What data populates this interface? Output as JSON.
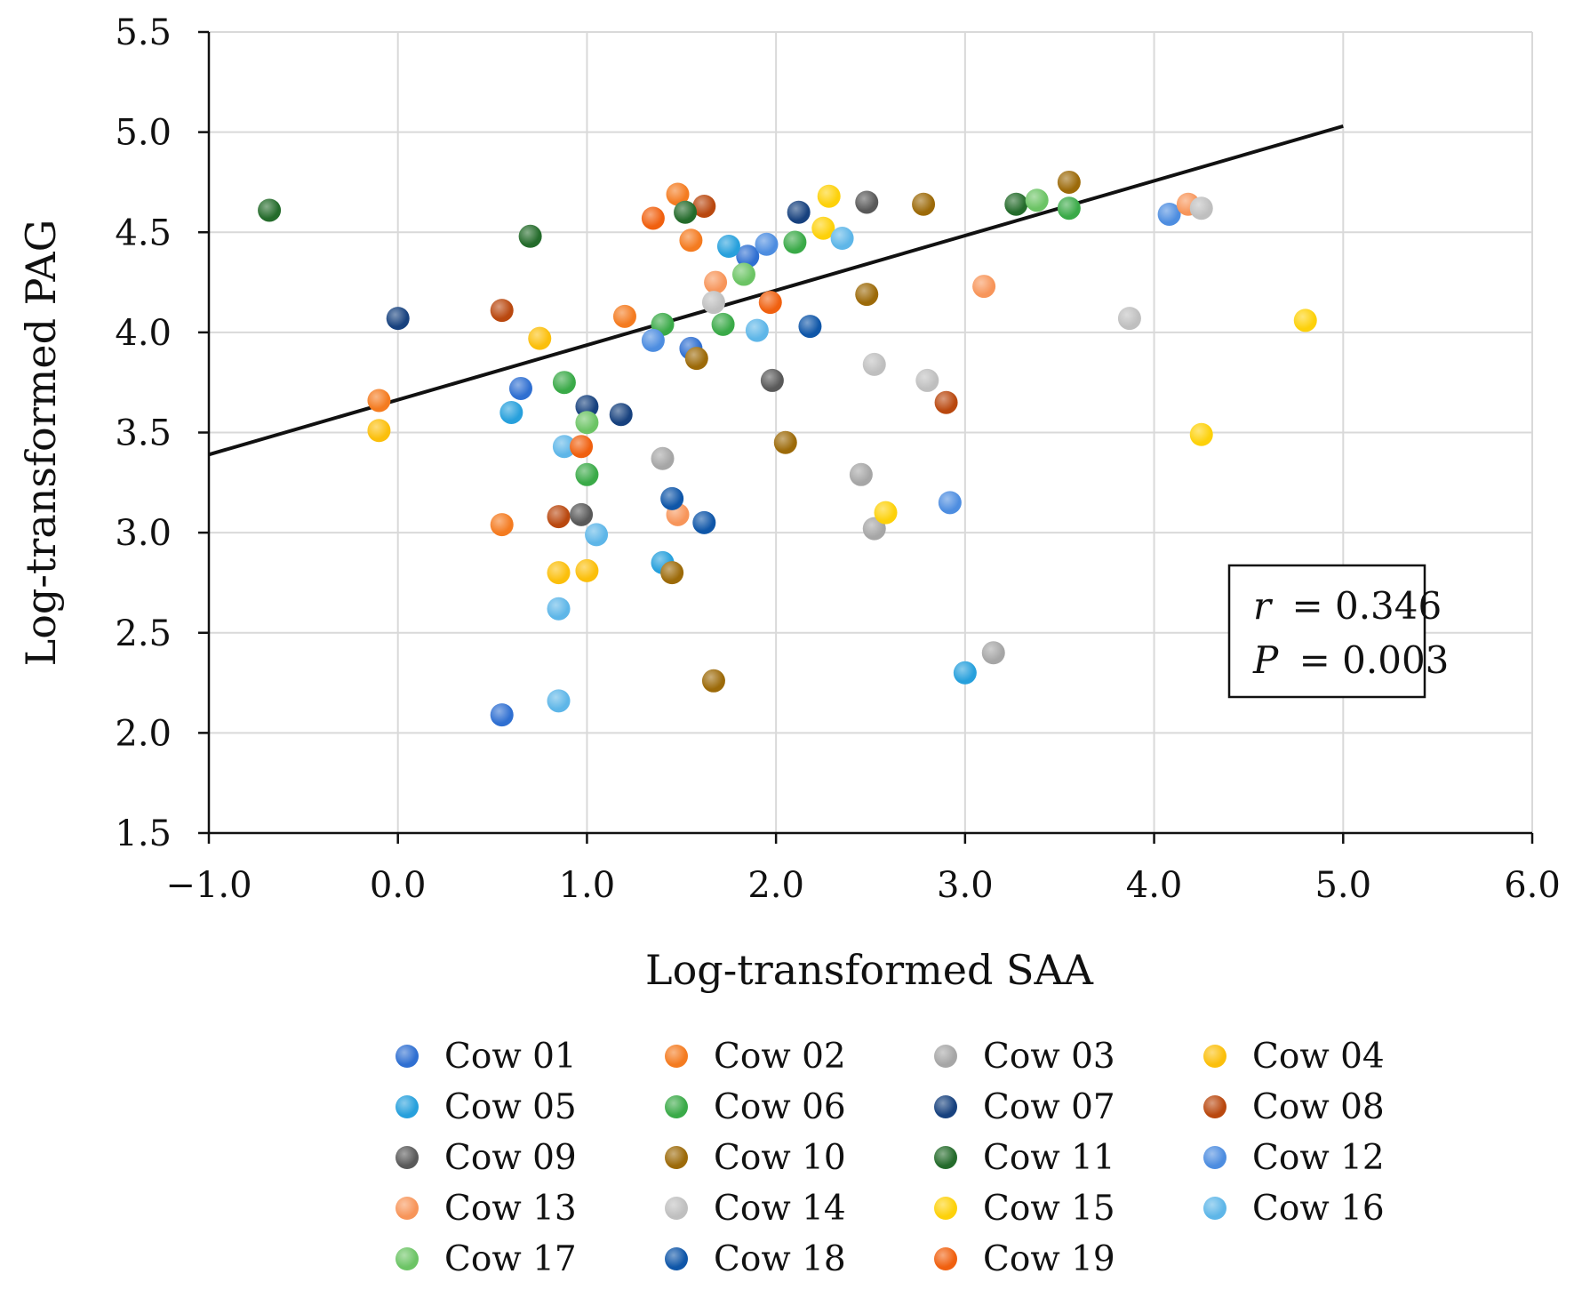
{
  "chart_data": {
    "type": "scatter",
    "title": "",
    "xlabel": "Log-transformed SAA",
    "ylabel": "Log-transformed PAG",
    "xlim": [
      -1.0,
      6.0
    ],
    "ylim": [
      1.5,
      5.5
    ],
    "x_ticks": [
      -1.0,
      0.0,
      1.0,
      2.0,
      3.0,
      4.0,
      5.0,
      6.0
    ],
    "x_tick_labels": [
      "−1.0",
      "0.0",
      "1.0",
      "2.0",
      "3.0",
      "4.0",
      "5.0",
      "6.0"
    ],
    "y_ticks": [
      1.5,
      2.0,
      2.5,
      3.0,
      3.5,
      4.0,
      4.5,
      5.0,
      5.5
    ],
    "y_tick_labels": [
      "1.5",
      "2.0",
      "2.5",
      "3.0",
      "3.5",
      "4.0",
      "4.5",
      "5.0",
      "5.5"
    ],
    "grid": true,
    "legend_position": "bottom",
    "trendline": {
      "x": [
        -1.0,
        5.0
      ],
      "y": [
        3.39,
        5.03
      ]
    },
    "annotation": {
      "r_label": "r",
      "r_value": "= 0.346",
      "p_label": "P",
      "p_value": "= 0.003"
    },
    "series": [
      {
        "name": "Cow 01",
        "color": "#2f6fd1",
        "points": [
          [
            0.55,
            2.09
          ],
          [
            0.65,
            3.72
          ],
          [
            1.55,
            3.92
          ],
          [
            1.85,
            4.38
          ]
        ]
      },
      {
        "name": "Cow 02",
        "color": "#f47b20",
        "points": [
          [
            -0.1,
            3.66
          ],
          [
            0.55,
            3.04
          ],
          [
            1.2,
            4.08
          ],
          [
            1.48,
            4.69
          ],
          [
            1.55,
            4.46
          ]
        ]
      },
      {
        "name": "Cow 03",
        "color": "#a6a6a6",
        "points": [
          [
            1.4,
            3.37
          ],
          [
            2.45,
            3.29
          ],
          [
            2.52,
            3.02
          ],
          [
            3.15,
            2.4
          ]
        ]
      },
      {
        "name": "Cow 04",
        "color": "#fbbf0b",
        "points": [
          [
            -0.1,
            3.51
          ],
          [
            0.75,
            3.97
          ],
          [
            0.85,
            2.8
          ],
          [
            1.0,
            2.81
          ]
        ]
      },
      {
        "name": "Cow 05",
        "color": "#27a0dc",
        "points": [
          [
            0.6,
            3.6
          ],
          [
            1.4,
            2.85
          ],
          [
            1.75,
            4.43
          ],
          [
            3.0,
            2.3
          ]
        ]
      },
      {
        "name": "Cow 06",
        "color": "#3aaa48",
        "points": [
          [
            0.88,
            3.75
          ],
          [
            1.0,
            3.29
          ],
          [
            1.4,
            4.04
          ],
          [
            1.72,
            4.04
          ],
          [
            2.1,
            4.45
          ],
          [
            3.55,
            4.62
          ]
        ]
      },
      {
        "name": "Cow 07",
        "color": "#17417e",
        "points": [
          [
            0.0,
            4.07
          ],
          [
            1.0,
            3.63
          ],
          [
            1.18,
            3.59
          ],
          [
            2.12,
            4.6
          ]
        ]
      },
      {
        "name": "Cow 08",
        "color": "#b9480f",
        "points": [
          [
            0.55,
            4.11
          ],
          [
            0.85,
            3.08
          ],
          [
            1.62,
            4.63
          ],
          [
            2.9,
            3.65
          ]
        ]
      },
      {
        "name": "Cow 09",
        "color": "#595959",
        "points": [
          [
            0.97,
            3.09
          ],
          [
            1.98,
            3.76
          ],
          [
            2.48,
            4.65
          ]
        ]
      },
      {
        "name": "Cow 10",
        "color": "#9c6a09",
        "points": [
          [
            1.45,
            2.8
          ],
          [
            1.58,
            3.87
          ],
          [
            1.67,
            2.26
          ],
          [
            2.05,
            3.45
          ],
          [
            2.48,
            4.19
          ],
          [
            2.78,
            4.64
          ],
          [
            3.55,
            4.75
          ]
        ]
      },
      {
        "name": "Cow 11",
        "color": "#246b2b",
        "points": [
          [
            -0.68,
            4.61
          ],
          [
            0.7,
            4.48
          ],
          [
            1.52,
            4.6
          ],
          [
            3.27,
            4.64
          ]
        ]
      },
      {
        "name": "Cow 12",
        "color": "#4d8de0",
        "points": [
          [
            1.35,
            3.96
          ],
          [
            1.95,
            4.44
          ],
          [
            2.92,
            3.15
          ],
          [
            4.08,
            4.59
          ]
        ]
      },
      {
        "name": "Cow 13",
        "color": "#f7955a",
        "points": [
          [
            1.48,
            3.09
          ],
          [
            1.68,
            4.25
          ],
          [
            3.1,
            4.23
          ],
          [
            4.18,
            4.64
          ]
        ]
      },
      {
        "name": "Cow 14",
        "color": "#bfbfbf",
        "points": [
          [
            1.67,
            4.15
          ],
          [
            2.52,
            3.84
          ],
          [
            2.8,
            3.76
          ],
          [
            3.87,
            4.07
          ],
          [
            4.25,
            4.62
          ]
        ]
      },
      {
        "name": "Cow 15",
        "color": "#fdd10a",
        "points": [
          [
            2.25,
            4.52
          ],
          [
            2.28,
            4.68
          ],
          [
            2.58,
            3.1
          ],
          [
            4.25,
            3.49
          ],
          [
            4.8,
            4.06
          ]
        ]
      },
      {
        "name": "Cow 16",
        "color": "#5eb6e8",
        "points": [
          [
            0.85,
            2.62
          ],
          [
            0.85,
            2.16
          ],
          [
            0.88,
            3.43
          ],
          [
            1.05,
            2.99
          ],
          [
            1.9,
            4.01
          ],
          [
            2.35,
            4.47
          ]
        ]
      },
      {
        "name": "Cow 17",
        "color": "#6cc465",
        "points": [
          [
            1.0,
            3.55
          ],
          [
            1.83,
            4.29
          ],
          [
            3.38,
            4.66
          ]
        ]
      },
      {
        "name": "Cow 18",
        "color": "#0f56a8",
        "points": [
          [
            1.45,
            3.17
          ],
          [
            1.62,
            3.05
          ],
          [
            2.18,
            4.03
          ]
        ]
      },
      {
        "name": "Cow 19",
        "color": "#f0600f",
        "points": [
          [
            0.97,
            3.43
          ],
          [
            1.35,
            4.57
          ],
          [
            1.97,
            4.15
          ]
        ]
      }
    ]
  }
}
